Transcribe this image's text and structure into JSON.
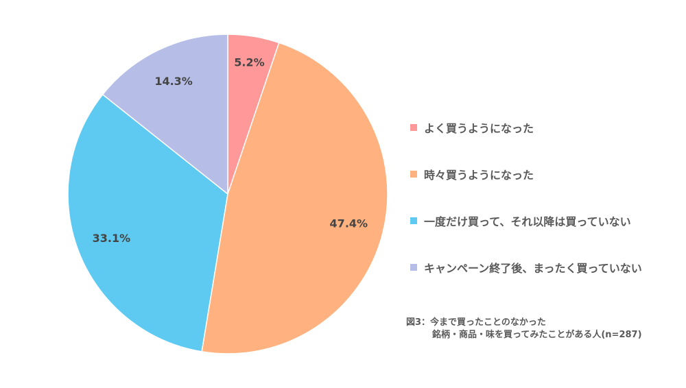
{
  "chart_data": {
    "type": "pie",
    "slices": [
      {
        "label": "よく買うようになった",
        "value": 5.2,
        "display": "5.2%",
        "color": "#FF9999"
      },
      {
        "label": "時々買うようになった",
        "value": 47.4,
        "display": "47.4%",
        "color": "#FFB27F"
      },
      {
        "label": "一度だけ買って、それ以降は買っていない",
        "value": 33.1,
        "display": "33.1%",
        "color": "#5ECAF2"
      },
      {
        "label": "キャンペーン終了後、まったく買っていない",
        "value": 14.3,
        "display": "14.3%",
        "color": "#B6BEE8"
      }
    ],
    "legend_placement": "right",
    "start_angle": "12 o'clock",
    "direction": "clockwise"
  },
  "caption": {
    "line1": "図3：今まで買ったことのなかった",
    "line2": "銘柄・商品・味を買ってみたことがある人(n=287)"
  }
}
